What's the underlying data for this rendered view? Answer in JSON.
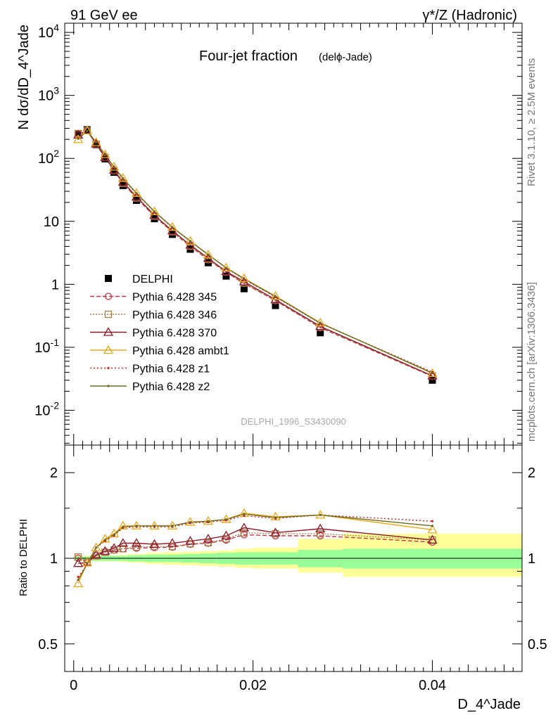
{
  "header": {
    "left_label": "91 GeV ee",
    "right_label": "γ*/Z (Hadronic)"
  },
  "side": {
    "rivet_label": "Rivet 3.1.10, ≥ 2.5M events",
    "mcplots_label": "mcplots.cern.ch [arXiv:1306.3436]"
  },
  "chart_data": [
    {
      "type": "line",
      "title": "Four-jet fraction",
      "subtitle": "(delϕ-Jade)",
      "ylabel": "N dσ/dD_4^Jade",
      "xlabel": "D_4^Jade",
      "watermark": "DELPHI_1996_S3430090",
      "yscale": "log",
      "xlim": [
        -0.001,
        0.05
      ],
      "ylim": [
        0.0028,
        14000
      ],
      "yticks": [
        0.01,
        0.1,
        1,
        10,
        100,
        1000,
        10000
      ],
      "ytick_labels": [
        "10^-2",
        "10^-1",
        "1",
        "10",
        "10^2",
        "10^3",
        "10^4"
      ],
      "legend_position": "left",
      "x": [
        0.0005,
        0.0015,
        0.0025,
        0.0035,
        0.0045,
        0.0055,
        0.007,
        0.009,
        0.011,
        0.013,
        0.015,
        0.017,
        0.019,
        0.0225,
        0.0275,
        0.04
      ],
      "series": [
        {
          "name": "DELPHI",
          "color": "#000000",
          "marker": "square",
          "values": [
            245,
            285,
            165,
            98,
            60,
            37,
            21.5,
            11,
            6.2,
            3.6,
            2.2,
            1.35,
            0.85,
            0.46,
            0.17,
            0.03
          ]
        },
        {
          "name": "Pythia 6.428 345",
          "color": "#c0384a",
          "marker": "circle",
          "dash": "6,3",
          "values": [
            247,
            275,
            168,
            103,
            64,
            40,
            23.3,
            12.0,
            6.8,
            4.0,
            2.45,
            1.55,
            1.03,
            0.55,
            0.205,
            0.0345
          ]
        },
        {
          "name": "Pythia 6.428 346",
          "color": "#a5804c",
          "marker": "square-open",
          "dash": "2,2",
          "values": [
            248,
            275,
            168,
            103,
            64,
            40,
            23.5,
            12.1,
            6.85,
            4.05,
            2.5,
            1.58,
            1.05,
            0.56,
            0.21,
            0.035
          ]
        },
        {
          "name": "Pythia 6.428 370",
          "color": "#8b1a2b",
          "marker": "triangle",
          "values": [
            235,
            275,
            170,
            104,
            65,
            42,
            24.5,
            12.5,
            7.1,
            4.2,
            2.6,
            1.6,
            1.1,
            0.57,
            0.215,
            0.0352
          ]
        },
        {
          "name": "Pythia 6.428 ambt1",
          "color": "#e8a820",
          "marker": "triangle",
          "values": [
            200,
            275,
            180,
            115,
            73,
            48.5,
            28,
            14.3,
            8.1,
            4.85,
            2.95,
            1.83,
            1.24,
            0.65,
            0.245,
            0.0385
          ]
        },
        {
          "name": "Pythia 6.428 z1",
          "color": "#d42020",
          "marker": "dot",
          "dash": "2,3",
          "values": [
            210,
            270,
            180,
            112,
            71,
            47,
            27.5,
            14.2,
            8.0,
            4.8,
            2.95,
            1.82,
            1.2,
            0.63,
            0.24,
            0.0405
          ]
        },
        {
          "name": "Pythia 6.428 z2",
          "color": "#6b6b20",
          "marker": "dot",
          "values": [
            205,
            272,
            180,
            113,
            72,
            48,
            28.0,
            14.3,
            8.1,
            4.85,
            2.96,
            1.83,
            1.22,
            0.64,
            0.242,
            0.039
          ]
        }
      ]
    },
    {
      "type": "line",
      "ylabel": "Ratio to DELPHI",
      "xlabel": "D_4^Jade",
      "yscale": "log",
      "xlim": [
        -0.001,
        0.05
      ],
      "ylim": [
        0.4,
        2.5
      ],
      "yticks": [
        0.5,
        1,
        2
      ],
      "ytick_labels": [
        "0.5",
        "1",
        "2"
      ],
      "xticks": [
        0,
        0.02,
        0.04
      ],
      "xtick_labels": [
        "0",
        "0.02",
        "0.04"
      ],
      "x": [
        0.0005,
        0.0015,
        0.0025,
        0.0035,
        0.0045,
        0.0055,
        0.007,
        0.009,
        0.011,
        0.013,
        0.015,
        0.017,
        0.019,
        0.0225,
        0.0275,
        0.04
      ],
      "bin_edges": [
        0,
        0.001,
        0.002,
        0.003,
        0.004,
        0.005,
        0.006,
        0.008,
        0.01,
        0.012,
        0.014,
        0.016,
        0.018,
        0.02,
        0.025,
        0.03,
        0.05
      ],
      "band_inner": [
        [
          0.985,
          1.015
        ],
        [
          0.985,
          1.015
        ],
        [
          0.98,
          1.02
        ],
        [
          0.98,
          1.02
        ],
        [
          0.98,
          1.02
        ],
        [
          0.98,
          1.02
        ],
        [
          0.975,
          1.025
        ],
        [
          0.97,
          1.03
        ],
        [
          0.97,
          1.03
        ],
        [
          0.965,
          1.035
        ],
        [
          0.96,
          1.04
        ],
        [
          0.955,
          1.045
        ],
        [
          0.95,
          1.05
        ],
        [
          0.95,
          1.05
        ],
        [
          0.93,
          1.07
        ],
        [
          0.92,
          1.08
        ]
      ],
      "band_outer": [
        [
          0.98,
          1.02
        ],
        [
          0.98,
          1.02
        ],
        [
          0.975,
          1.025
        ],
        [
          0.975,
          1.025
        ],
        [
          0.975,
          1.025
        ],
        [
          0.97,
          1.03
        ],
        [
          0.965,
          1.035
        ],
        [
          0.955,
          1.045
        ],
        [
          0.95,
          1.05
        ],
        [
          0.945,
          1.055
        ],
        [
          0.94,
          1.06
        ],
        [
          0.935,
          1.065
        ],
        [
          0.925,
          1.08
        ],
        [
          0.92,
          1.09
        ],
        [
          0.89,
          1.17
        ],
        [
          0.86,
          1.22
        ]
      ],
      "series": [
        {
          "name": "Pythia 6.428 345",
          "color": "#c0384a",
          "marker": "circle",
          "dash": "6,3",
          "values": [
            1.0,
            0.965,
            1.02,
            1.05,
            1.07,
            1.08,
            1.085,
            1.09,
            1.095,
            1.12,
            1.13,
            1.16,
            1.21,
            1.2,
            1.2,
            1.14
          ]
        },
        {
          "name": "Pythia 6.428 346",
          "color": "#a5804c",
          "marker": "square-open",
          "dash": "2,2",
          "values": [
            1.01,
            0.965,
            1.02,
            1.05,
            1.07,
            1.08,
            1.095,
            1.1,
            1.1,
            1.125,
            1.135,
            1.17,
            1.23,
            1.22,
            1.22,
            1.16
          ]
        },
        {
          "name": "Pythia 6.428 370",
          "color": "#8b1a2b",
          "marker": "triangle",
          "values": [
            0.96,
            0.965,
            1.03,
            1.06,
            1.085,
            1.13,
            1.13,
            1.12,
            1.13,
            1.15,
            1.17,
            1.2,
            1.28,
            1.23,
            1.27,
            1.16
          ]
        },
        {
          "name": "Pythia 6.428 ambt1",
          "color": "#e8a820",
          "marker": "triangle",
          "values": [
            0.815,
            0.965,
            1.09,
            1.17,
            1.22,
            1.3,
            1.3,
            1.3,
            1.3,
            1.34,
            1.35,
            1.37,
            1.44,
            1.4,
            1.42,
            1.26
          ]
        },
        {
          "name": "Pythia 6.428 z1",
          "color": "#d42020",
          "marker": "dot",
          "dash": "2,3",
          "values": [
            0.86,
            0.95,
            1.09,
            1.15,
            1.2,
            1.28,
            1.29,
            1.29,
            1.29,
            1.33,
            1.34,
            1.36,
            1.41,
            1.38,
            1.42,
            1.35
          ]
        },
        {
          "name": "Pythia 6.428 z2",
          "color": "#6b6b20",
          "marker": "dot",
          "values": [
            0.84,
            0.955,
            1.09,
            1.16,
            1.21,
            1.29,
            1.3,
            1.3,
            1.3,
            1.34,
            1.35,
            1.37,
            1.43,
            1.39,
            1.42,
            1.3
          ]
        }
      ]
    }
  ]
}
